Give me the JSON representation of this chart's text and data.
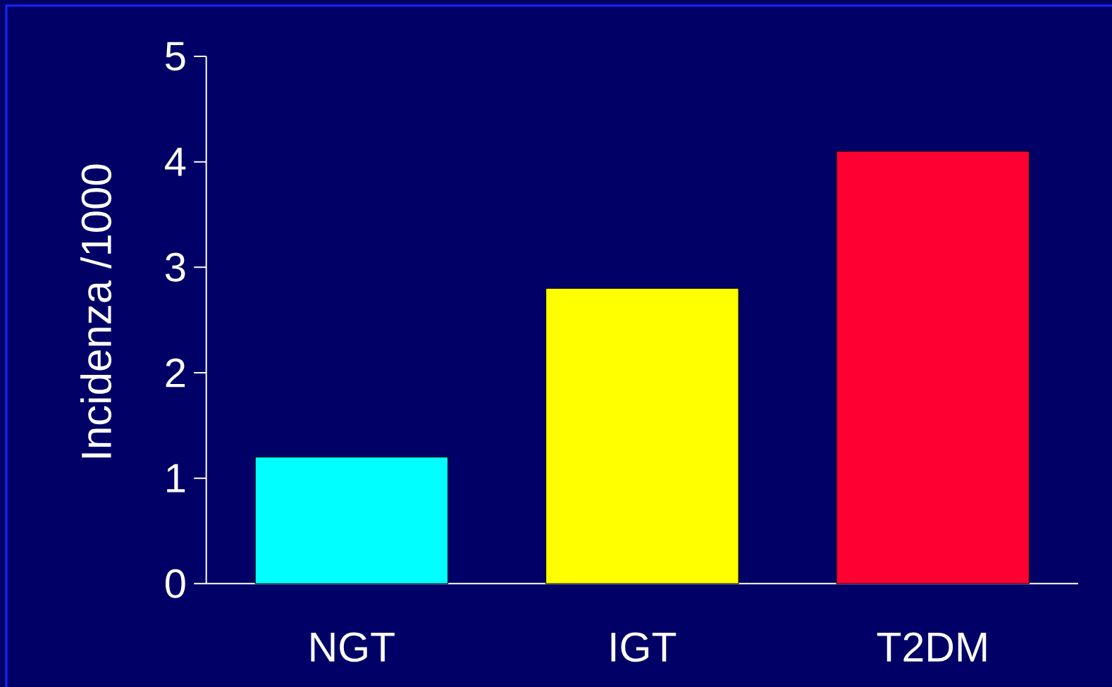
{
  "chart_data": {
    "type": "bar",
    "ylabel": "Incidenza /1000",
    "categories": [
      "NGT",
      "IGT",
      "T2DM"
    ],
    "values": [
      1.2,
      2.8,
      4.1
    ],
    "colors": [
      "#00ffff",
      "#ffff00",
      "#ff0033"
    ],
    "ylim": [
      0,
      5
    ],
    "yticks": [
      0,
      1,
      2,
      3,
      4,
      5
    ]
  }
}
